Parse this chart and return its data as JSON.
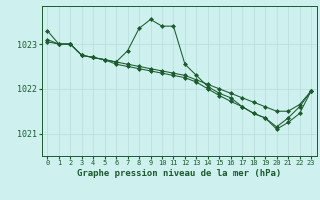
{
  "title": "Graphe pression niveau de la mer (hPa)",
  "bg_color": "#cef0ee",
  "grid_color": "#b8ddd8",
  "line_color": "#1a5c2a",
  "xlim": [
    -0.5,
    23.5
  ],
  "ylim": [
    1020.5,
    1023.85
  ],
  "yticks": [
    1021,
    1022,
    1023
  ],
  "xticks": [
    0,
    1,
    2,
    3,
    4,
    5,
    6,
    7,
    8,
    9,
    10,
    11,
    12,
    13,
    14,
    15,
    16,
    17,
    18,
    19,
    20,
    21,
    22,
    23
  ],
  "lines": [
    {
      "x": [
        0,
        1,
        2,
        3,
        4,
        5,
        6,
        7,
        8,
        9,
        10,
        11,
        12,
        13,
        14,
        15,
        16,
        17,
        18,
        19,
        20,
        21,
        22,
        23
      ],
      "y": [
        1023.3,
        1023.0,
        1023.0,
        1022.75,
        1022.7,
        1022.65,
        1022.6,
        1022.85,
        1023.35,
        1023.55,
        1023.4,
        1023.4,
        1022.55,
        1022.3,
        1022.05,
        1021.9,
        1021.8,
        1021.6,
        1021.45,
        1021.35,
        1021.15,
        1021.35,
        1021.6,
        1021.95
      ]
    },
    {
      "x": [
        0,
        1,
        2,
        3,
        4,
        5,
        6,
        7,
        8,
        9,
        10,
        11,
        12,
        13,
        14,
        15,
        16,
        17,
        18,
        19,
        20,
        21,
        22,
        23
      ],
      "y": [
        1023.05,
        1023.0,
        1023.0,
        1022.75,
        1022.7,
        1022.65,
        1022.6,
        1022.55,
        1022.5,
        1022.45,
        1022.4,
        1022.35,
        1022.3,
        1022.2,
        1022.1,
        1022.0,
        1021.9,
        1021.8,
        1021.7,
        1021.6,
        1021.5,
        1021.5,
        1021.65,
        1021.95
      ]
    },
    {
      "x": [
        0,
        1,
        2,
        3,
        4,
        5,
        6,
        7,
        8,
        9,
        10,
        11,
        12,
        13,
        14,
        15,
        16,
        17,
        18,
        19,
        20,
        21,
        22,
        23
      ],
      "y": [
        1023.1,
        1023.0,
        1023.0,
        1022.75,
        1022.7,
        1022.65,
        1022.55,
        1022.5,
        1022.45,
        1022.4,
        1022.35,
        1022.3,
        1022.25,
        1022.15,
        1022.0,
        1021.85,
        1021.72,
        1021.6,
        1021.45,
        1021.35,
        1021.1,
        1021.25,
        1021.45,
        1021.95
      ]
    }
  ]
}
